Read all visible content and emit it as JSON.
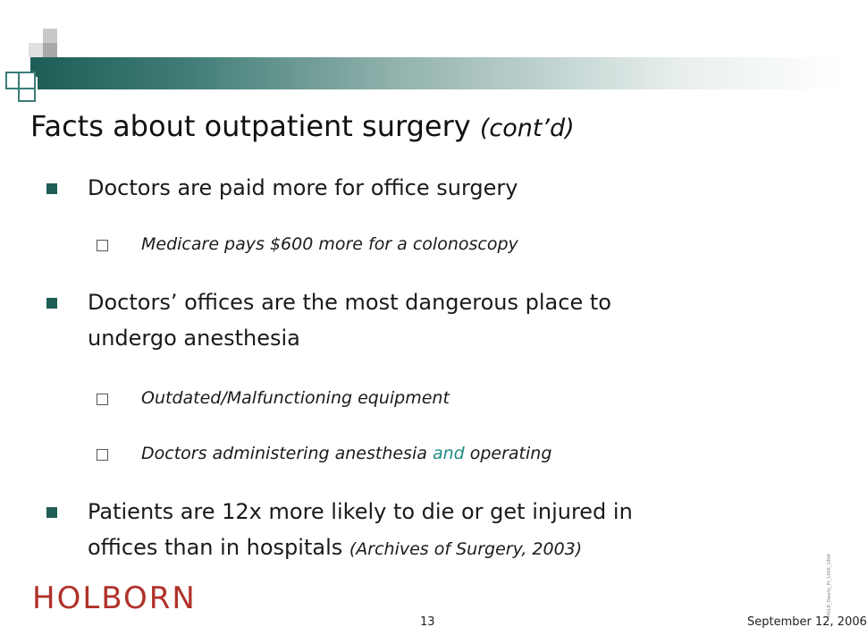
{
  "slide": {
    "title": "Facts about outpatient surgery",
    "title_suffix": "(cont’d)",
    "bullets": [
      {
        "text": "Doctors are paid more for office surgery",
        "subs": [
          "Medicare pays $600 more for a colonoscopy"
        ]
      },
      {
        "text_line1": "Doctors’ offices are the most dangerous place to",
        "text_line2": "undergo anesthesia",
        "subs": [
          "Outdated/Malfunctioning equipment",
          {
            "pre": "Doctors administering anesthesia ",
            "em": "and",
            "post": " operating"
          }
        ]
      },
      {
        "text_line1": "Patients are 12x more likely to die or get injured in",
        "text_line2": "offices than in hospitals ",
        "citation": "(Archives of Surgery, 2003)"
      }
    ]
  },
  "footer": {
    "logo": "HOLBORN",
    "page_number": "13",
    "date": "September 12, 2006",
    "side_note": "HOLB_Dwelly_Pt_1006_1906"
  },
  "colors": {
    "accent": "#1f5e57",
    "teal_text": "#1f8a83",
    "logo": "#b0322a"
  }
}
